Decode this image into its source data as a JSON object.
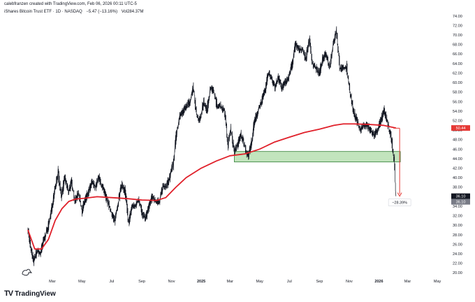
{
  "header": {
    "credit": "calebfranzen created with TradingView.com, Feb 06, 2026 00:11 UTC-5",
    "symbol": "iShares Bitcoin Trust ETF · 1D · NASDAQ",
    "change": "−5.47 (−13.16%)",
    "volume": "Vol284.37M"
  },
  "footer": {
    "brand": "TradingView",
    "logo": "TV"
  },
  "colors": {
    "candle": "#131722",
    "ma": "#e0202a",
    "zone_fill": "#b7dfb2",
    "zone_stroke": "#2e7d32",
    "ma_label_bg": "#e53935",
    "price_label_bg": "#131722",
    "arrow": "#e53935"
  },
  "chart_data": {
    "type": "candlestick",
    "y_ticks": [
      "74.00",
      "72.00",
      "70.00",
      "68.00",
      "66.00",
      "64.00",
      "62.00",
      "60.00",
      "58.00",
      "56.00",
      "54.00",
      "52.00",
      "50.00",
      "48.00",
      "46.00",
      "44.00",
      "42.00",
      "40.00",
      "38.00",
      "36.00",
      "34.00",
      "32.00",
      "30.00",
      "28.00",
      "26.00",
      "24.00",
      "22.00",
      "20.00"
    ],
    "ylim": [
      19,
      75
    ],
    "x_ticks": [
      {
        "label": "Mar",
        "date": "2024-03-01",
        "bold": false
      },
      {
        "label": "May",
        "date": "2024-05-01",
        "bold": false
      },
      {
        "label": "Jul",
        "date": "2024-07-01",
        "bold": false
      },
      {
        "label": "Sep",
        "date": "2024-09-01",
        "bold": false
      },
      {
        "label": "Nov",
        "date": "2024-11-01",
        "bold": false
      },
      {
        "label": "2025",
        "date": "2025-01-01",
        "bold": true
      },
      {
        "label": "Mar",
        "date": "2025-03-01",
        "bold": false
      },
      {
        "label": "May",
        "date": "2025-05-01",
        "bold": false
      },
      {
        "label": "Jul",
        "date": "2025-07-01",
        "bold": false
      },
      {
        "label": "Sep",
        "date": "2025-09-01",
        "bold": false
      },
      {
        "label": "Nov",
        "date": "2025-11-01",
        "bold": false
      },
      {
        "label": "2026",
        "date": "2026-01-01",
        "bold": true
      },
      {
        "label": "Mar",
        "date": "2026-03-01",
        "bold": false
      },
      {
        "label": "May",
        "date": "2026-05-01",
        "bold": false
      }
    ],
    "price_path": [
      [
        "2024-01-11",
        29.5
      ],
      [
        "2024-01-17",
        25.0
      ],
      [
        "2024-01-23",
        22.5
      ],
      [
        "2024-01-30",
        24.5
      ],
      [
        "2024-02-06",
        24.0
      ],
      [
        "2024-02-13",
        27.0
      ],
      [
        "2024-02-20",
        29.0
      ],
      [
        "2024-02-27",
        32.0
      ],
      [
        "2024-03-05",
        37.0
      ],
      [
        "2024-03-13",
        41.0
      ],
      [
        "2024-03-20",
        36.0
      ],
      [
        "2024-03-27",
        40.0
      ],
      [
        "2024-04-03",
        37.0
      ],
      [
        "2024-04-10",
        39.0
      ],
      [
        "2024-04-17",
        35.0
      ],
      [
        "2024-04-24",
        37.0
      ],
      [
        "2024-05-01",
        33.0
      ],
      [
        "2024-05-08",
        35.5
      ],
      [
        "2024-05-15",
        37.0
      ],
      [
        "2024-05-22",
        39.0
      ],
      [
        "2024-05-29",
        38.0
      ],
      [
        "2024-06-05",
        40.0
      ],
      [
        "2024-06-12",
        38.0
      ],
      [
        "2024-06-19",
        36.0
      ],
      [
        "2024-06-26",
        34.0
      ],
      [
        "2024-07-03",
        32.0
      ],
      [
        "2024-07-08",
        31.0
      ],
      [
        "2024-07-15",
        35.0
      ],
      [
        "2024-07-22",
        38.5
      ],
      [
        "2024-07-29",
        37.0
      ],
      [
        "2024-08-05",
        30.5
      ],
      [
        "2024-08-12",
        34.0
      ],
      [
        "2024-08-19",
        34.0
      ],
      [
        "2024-08-26",
        35.5
      ],
      [
        "2024-09-03",
        32.0
      ],
      [
        "2024-09-09",
        31.5
      ],
      [
        "2024-09-16",
        34.0
      ],
      [
        "2024-09-23",
        36.0
      ],
      [
        "2024-09-30",
        35.0
      ],
      [
        "2024-10-07",
        35.0
      ],
      [
        "2024-10-14",
        38.0
      ],
      [
        "2024-10-21",
        38.0
      ],
      [
        "2024-10-28",
        40.0
      ],
      [
        "2024-11-05",
        43.0
      ],
      [
        "2024-11-11",
        49.0
      ],
      [
        "2024-11-18",
        53.0
      ],
      [
        "2024-11-25",
        54.0
      ],
      [
        "2024-12-02",
        55.0
      ],
      [
        "2024-12-09",
        56.0
      ],
      [
        "2024-12-16",
        59.0
      ],
      [
        "2024-12-23",
        53.0
      ],
      [
        "2024-12-30",
        52.0
      ],
      [
        "2025-01-06",
        56.0
      ],
      [
        "2025-01-13",
        54.0
      ],
      [
        "2025-01-20",
        59.0
      ],
      [
        "2025-01-27",
        58.0
      ],
      [
        "2025-02-03",
        55.0
      ],
      [
        "2025-02-10",
        55.0
      ],
      [
        "2025-02-18",
        54.0
      ],
      [
        "2025-02-25",
        47.0
      ],
      [
        "2025-03-03",
        50.0
      ],
      [
        "2025-03-10",
        45.5
      ],
      [
        "2025-03-17",
        47.0
      ],
      [
        "2025-03-24",
        49.0
      ],
      [
        "2025-03-31",
        47.0
      ],
      [
        "2025-04-07",
        44.5
      ],
      [
        "2025-04-14",
        47.0
      ],
      [
        "2025-04-21",
        52.0
      ],
      [
        "2025-04-28",
        54.0
      ],
      [
        "2025-05-05",
        56.0
      ],
      [
        "2025-05-12",
        58.0
      ],
      [
        "2025-05-19",
        62.0
      ],
      [
        "2025-05-26",
        61.0
      ],
      [
        "2025-06-02",
        59.0
      ],
      [
        "2025-06-09",
        61.0
      ],
      [
        "2025-06-16",
        59.0
      ],
      [
        "2025-06-23",
        60.0
      ],
      [
        "2025-06-30",
        61.0
      ],
      [
        "2025-07-07",
        64.0
      ],
      [
        "2025-07-14",
        68.0
      ],
      [
        "2025-07-21",
        67.0
      ],
      [
        "2025-07-28",
        67.0
      ],
      [
        "2025-08-04",
        65.0
      ],
      [
        "2025-08-11",
        69.0
      ],
      [
        "2025-08-18",
        64.0
      ],
      [
        "2025-08-25",
        63.0
      ],
      [
        "2025-09-01",
        62.0
      ],
      [
        "2025-09-08",
        65.0
      ],
      [
        "2025-09-15",
        66.0
      ],
      [
        "2025-09-22",
        63.0
      ],
      [
        "2025-09-29",
        68.0
      ],
      [
        "2025-10-06",
        71.0
      ],
      [
        "2025-10-13",
        63.0
      ],
      [
        "2025-10-20",
        63.0
      ],
      [
        "2025-10-27",
        63.0
      ],
      [
        "2025-11-03",
        58.0
      ],
      [
        "2025-11-10",
        54.0
      ],
      [
        "2025-11-17",
        52.0
      ],
      [
        "2025-11-24",
        50.0
      ],
      [
        "2025-12-01",
        51.0
      ],
      [
        "2025-12-08",
        51.0
      ],
      [
        "2025-12-15",
        50.0
      ],
      [
        "2025-12-22",
        49.0
      ],
      [
        "2025-12-29",
        50.0
      ],
      [
        "2026-01-05",
        52.0
      ],
      [
        "2026-01-12",
        54.0
      ],
      [
        "2026-01-20",
        51.0
      ],
      [
        "2026-01-27",
        48.0
      ],
      [
        "2026-02-02",
        43.5
      ],
      [
        "2026-02-05",
        36.1
      ]
    ],
    "ma_path": [
      [
        "2024-01-11",
        29.0
      ],
      [
        "2024-01-25",
        25.0
      ],
      [
        "2024-02-08",
        25.0
      ],
      [
        "2024-02-22",
        27.0
      ],
      [
        "2024-03-07",
        31.0
      ],
      [
        "2024-03-21",
        33.5
      ],
      [
        "2024-04-04",
        35.0
      ],
      [
        "2024-04-18",
        35.5
      ],
      [
        "2024-05-09",
        35.7
      ],
      [
        "2024-06-01",
        36.0
      ],
      [
        "2024-07-01",
        35.8
      ],
      [
        "2024-08-01",
        35.6
      ],
      [
        "2024-09-01",
        35.3
      ],
      [
        "2024-10-01",
        35.2
      ],
      [
        "2024-10-20",
        35.8
      ],
      [
        "2024-11-10",
        38.0
      ],
      [
        "2024-12-01",
        40.0
      ],
      [
        "2025-01-01",
        42.0
      ],
      [
        "2025-02-01",
        43.5
      ],
      [
        "2025-03-01",
        44.6
      ],
      [
        "2025-04-01",
        45.0
      ],
      [
        "2025-05-01",
        46.0
      ],
      [
        "2025-06-01",
        47.5
      ],
      [
        "2025-07-01",
        48.5
      ],
      [
        "2025-08-01",
        49.5
      ],
      [
        "2025-09-01",
        50.2
      ],
      [
        "2025-10-01",
        51.0
      ],
      [
        "2025-10-20",
        51.3
      ],
      [
        "2025-11-10",
        51.3
      ],
      [
        "2025-12-10",
        51.2
      ],
      [
        "2026-01-10",
        51.0
      ],
      [
        "2026-02-05",
        50.44
      ]
    ],
    "ma_label": "50.44",
    "price_labels": [
      "36.10",
      "36.10"
    ],
    "price_label_value": 36.1,
    "zone": {
      "from": "2025-03-10",
      "to": "2026-02-14",
      "low": 43.3,
      "high": 45.5
    },
    "drop": {
      "from_date": "2026-02-04",
      "from_value": 50.4,
      "to_value": 36.1,
      "label": "−28.39%"
    }
  }
}
